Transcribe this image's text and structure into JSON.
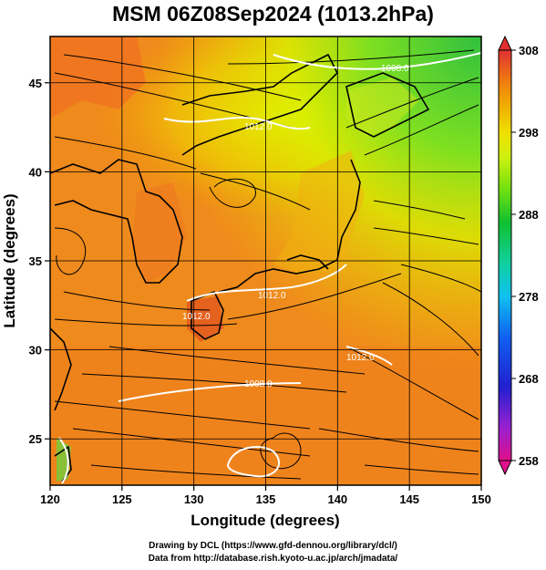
{
  "title": "MSM 06Z08Sep2024 (1013.2hPa)",
  "axes": {
    "xlabel": "Longitude (degrees)",
    "ylabel": "Latitude  (degrees)",
    "lon_range": [
      120,
      150
    ],
    "lat_range": [
      22.4,
      47.6
    ],
    "xticks": [
      "120",
      "125",
      "130",
      "135",
      "140",
      "145",
      "150"
    ],
    "yticks": [
      "25",
      "30",
      "35",
      "40",
      "45"
    ],
    "xtick_values": [
      120,
      125,
      130,
      135,
      140,
      145,
      150
    ],
    "ytick_values": [
      25,
      30,
      35,
      40,
      45
    ],
    "grid": true
  },
  "colorbar": {
    "min": 258,
    "max": 308,
    "labels": [
      "308",
      "298",
      "288",
      "278",
      "268",
      "258"
    ],
    "label_values": [
      308,
      298,
      288,
      278,
      268,
      258
    ],
    "colors": [
      "#e0108a",
      "#a020d0",
      "#2020d0",
      "#1060f0",
      "#10b0f0",
      "#10d0a0",
      "#10c030",
      "#60e010",
      "#c0f010",
      "#f0f000",
      "#f0c000",
      "#f09010",
      "#f06020",
      "#e03030"
    ]
  },
  "contour_labels": [
    "1008.0",
    "1012.0",
    "1012.0",
    "1012.0",
    "1012.0",
    "1008.0",
    "1008.0"
  ],
  "credits": {
    "line1": "Drawing by DCL (https://www.gfd-dennou.org/library/dcl/)",
    "line2": "Data from http://database.rish.kyoto-u.ac.jp/arch/jmadata/"
  }
}
